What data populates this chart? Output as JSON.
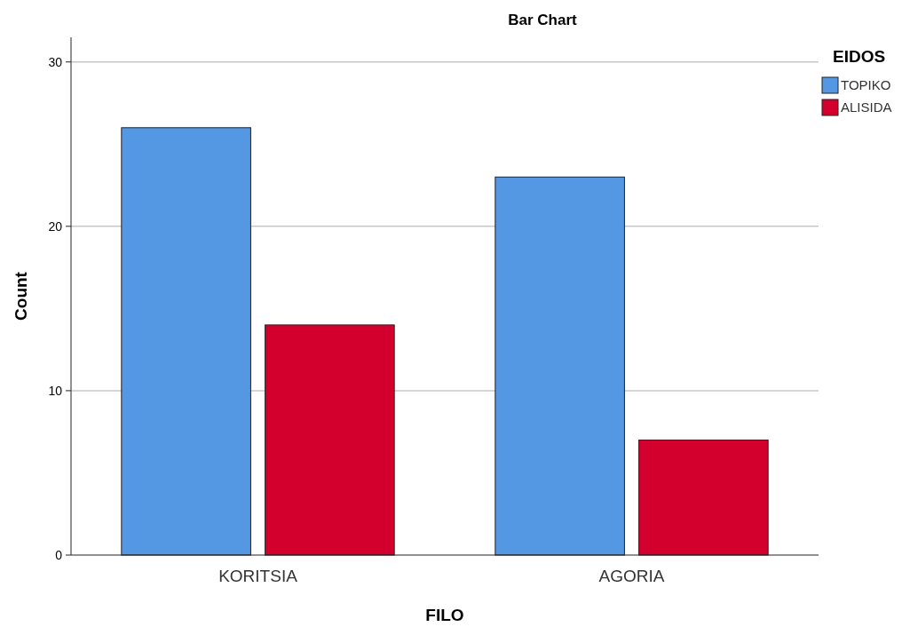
{
  "chart_data": {
    "type": "bar",
    "title": "Bar Chart",
    "xlabel": "FILO",
    "ylabel": "Count",
    "legend_title": "EIDOS",
    "categories": [
      "KORITSIA",
      "AGORIA"
    ],
    "series": [
      {
        "name": "TOPIKO",
        "color": "#5497e3",
        "values": [
          26,
          23
        ]
      },
      {
        "name": "ALISIDA",
        "color": "#d3002e",
        "values": [
          14,
          7
        ]
      }
    ],
    "ylim": [
      0,
      31.5
    ],
    "yticks": [
      0,
      10,
      20,
      30
    ],
    "grid": "y",
    "legend": "top right"
  }
}
